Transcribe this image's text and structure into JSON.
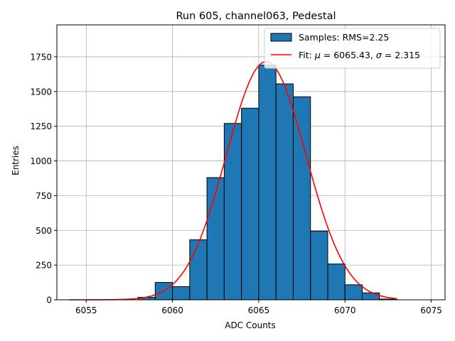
{
  "chart_data": {
    "type": "bar",
    "title": "Run 605, channel063, Pedestal",
    "xlabel": "ADC Counts",
    "ylabel": "Entries",
    "xlim": [
      6053.3,
      6075.8
    ],
    "ylim": [
      0,
      1980
    ],
    "xticks": [
      6055,
      6060,
      6065,
      6070,
      6075
    ],
    "yticks": [
      0,
      250,
      500,
      750,
      1000,
      1250,
      1500,
      1750
    ],
    "grid": true,
    "legend_position": "top-right",
    "histogram": {
      "name": "Samples: RMS=2.25",
      "color": "#1f77b4",
      "edge_color": "#000000",
      "bin_width": 1,
      "bins": [
        {
          "x0": 6058,
          "value": 18
        },
        {
          "x0": 6059,
          "value": 125
        },
        {
          "x0": 6060,
          "value": 95
        },
        {
          "x0": 6061,
          "value": 432
        },
        {
          "x0": 6062,
          "value": 880
        },
        {
          "x0": 6063,
          "value": 1270
        },
        {
          "x0": 6064,
          "value": 1380
        },
        {
          "x0": 6065,
          "value": 1690
        },
        {
          "x0": 6066,
          "value": 1555
        },
        {
          "x0": 6067,
          "value": 1462
        },
        {
          "x0": 6068,
          "value": 495
        },
        {
          "x0": 6069,
          "value": 258
        },
        {
          "x0": 6070,
          "value": 108
        },
        {
          "x0": 6071,
          "value": 50
        },
        {
          "x0": 6072,
          "value": 5
        }
      ]
    },
    "fit": {
      "name": "Fit: μ = 6065.43, σ = 2.315",
      "name_prefix": "Fit: ",
      "mu_symbol": "μ",
      "mu_text": " = 6065.43, ",
      "sigma_symbol": "σ",
      "sigma_text": " = 2.315",
      "color": "#ff0000",
      "mu": 6065.43,
      "sigma": 2.315,
      "amplitude": 1715,
      "x_range": [
        6054,
        6073
      ]
    }
  }
}
